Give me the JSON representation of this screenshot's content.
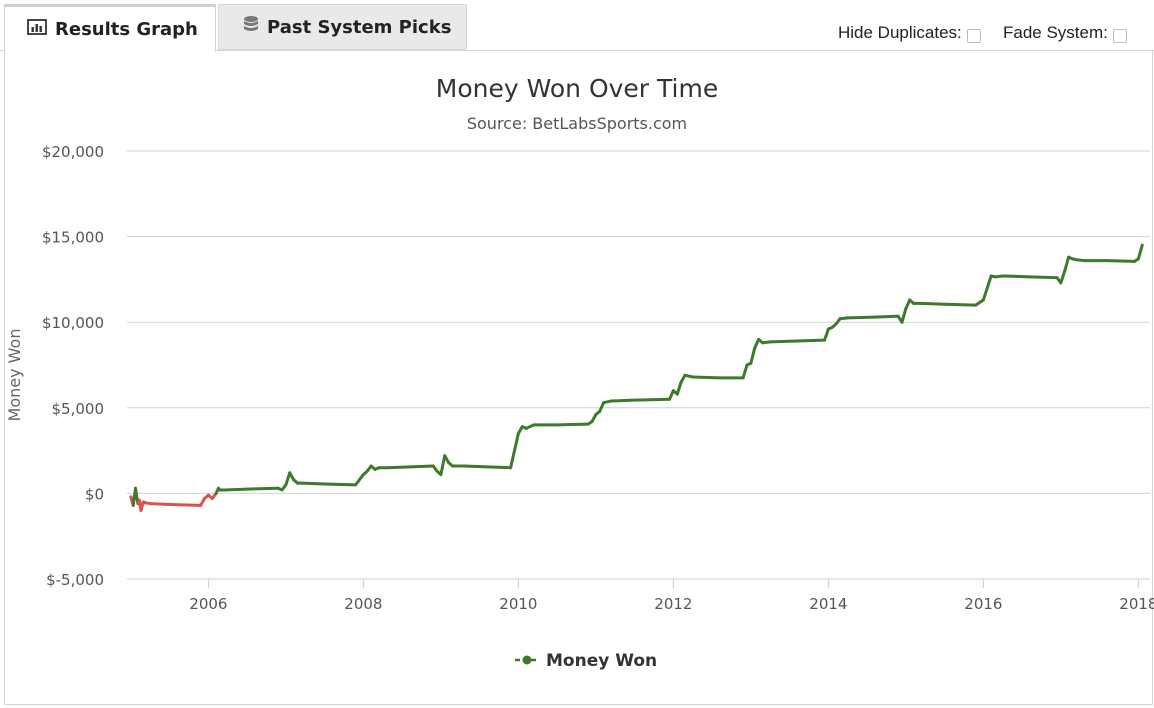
{
  "tabs": {
    "results_label": "Results Graph",
    "picks_label": "Past System Picks"
  },
  "controls": {
    "hide_duplicates_label": "Hide Duplicates:",
    "fade_system_label": "Fade System:",
    "hide_duplicates_checked": false,
    "fade_system_checked": false
  },
  "icons": {
    "results_tab": "bar-chart-icon",
    "picks_tab": "database-icon"
  },
  "colors": {
    "line_positive": "#3d7a2b",
    "line_negative": "#d9534f",
    "grid": "#cfd3db"
  },
  "chart_data": {
    "type": "line",
    "title": "Money Won Over Time",
    "subtitle": "Source: BetLabsSports.com",
    "xlabel": "",
    "ylabel": "Money Won",
    "xlim": [
      2004.95,
      2018.15
    ],
    "ylim": [
      -5000,
      20000
    ],
    "y_ticks": [
      -5000,
      0,
      5000,
      10000,
      15000,
      20000
    ],
    "y_tick_labels": [
      "$-5,000",
      "$0",
      "$5,000",
      "$10,000",
      "$15,000",
      "$20,000"
    ],
    "x_ticks": [
      2006,
      2008,
      2010,
      2012,
      2014,
      2016,
      2018
    ],
    "x_tick_labels": [
      "2006",
      "2008",
      "2010",
      "2012",
      "2014",
      "2016",
      "2018"
    ],
    "grid": true,
    "legend_position": "bottom-center",
    "series": [
      {
        "name": "Money Won",
        "x": [
          2005.0,
          2005.03,
          2005.06,
          2005.09,
          2005.11,
          2005.13,
          2005.16,
          2005.19,
          2005.25,
          2005.5,
          2005.9,
          2005.95,
          2006.0,
          2006.05,
          2006.1,
          2006.13,
          2006.15,
          2006.2,
          2006.5,
          2006.9,
          2006.95,
          2007.0,
          2007.05,
          2007.1,
          2007.15,
          2007.2,
          2007.5,
          2007.9,
          2008.0,
          2008.05,
          2008.1,
          2008.15,
          2008.2,
          2008.3,
          2008.6,
          2008.9,
          2008.95,
          2009.0,
          2009.05,
          2009.1,
          2009.15,
          2009.2,
          2009.3,
          2009.6,
          2009.9,
          2009.95,
          2010.0,
          2010.05,
          2010.1,
          2010.2,
          2010.5,
          2010.9,
          2010.95,
          2011.0,
          2011.05,
          2011.1,
          2011.2,
          2011.5,
          2011.95,
          2012.0,
          2012.05,
          2012.1,
          2012.15,
          2012.25,
          2012.6,
          2012.9,
          2012.95,
          2013.0,
          2013.05,
          2013.1,
          2013.15,
          2013.25,
          2013.6,
          2013.95,
          2013.97,
          2014.0,
          2014.05,
          2014.1,
          2014.15,
          2014.25,
          2014.6,
          2014.9,
          2014.95,
          2015.0,
          2015.05,
          2015.1,
          2015.2,
          2015.5,
          2015.9,
          2016.0,
          2016.05,
          2016.1,
          2016.15,
          2016.25,
          2016.6,
          2016.95,
          2017.0,
          2017.05,
          2017.1,
          2017.15,
          2017.2,
          2017.3,
          2017.6,
          2017.95,
          2018.0,
          2018.05
        ],
        "y": [
          -200,
          -700,
          300,
          -600,
          -400,
          -1000,
          -500,
          -550,
          -600,
          -650,
          -700,
          -300,
          -100,
          -300,
          0,
          300,
          200,
          200,
          250,
          300,
          200,
          500,
          1200,
          800,
          600,
          600,
          550,
          500,
          1100,
          1300,
          1600,
          1400,
          1500,
          1500,
          1550,
          1600,
          1300,
          1100,
          2200,
          1800,
          1600,
          1600,
          1600,
          1550,
          1500,
          2500,
          3500,
          3900,
          3800,
          4000,
          4000,
          4050,
          4200,
          4600,
          4800,
          5300,
          5400,
          5450,
          5500,
          6000,
          5800,
          6500,
          6900,
          6800,
          6750,
          6750,
          7500,
          7600,
          8500,
          9000,
          8800,
          8850,
          8900,
          8950,
          9200,
          9600,
          9700,
          9900,
          10200,
          10250,
          10300,
          10350,
          10000,
          10800,
          11300,
          11100,
          11100,
          11050,
          11000,
          11300,
          12000,
          12700,
          12650,
          12700,
          12650,
          12600,
          12300,
          13000,
          13800,
          13700,
          13650,
          13600,
          13600,
          13550,
          13700,
          14500
        ]
      }
    ]
  }
}
